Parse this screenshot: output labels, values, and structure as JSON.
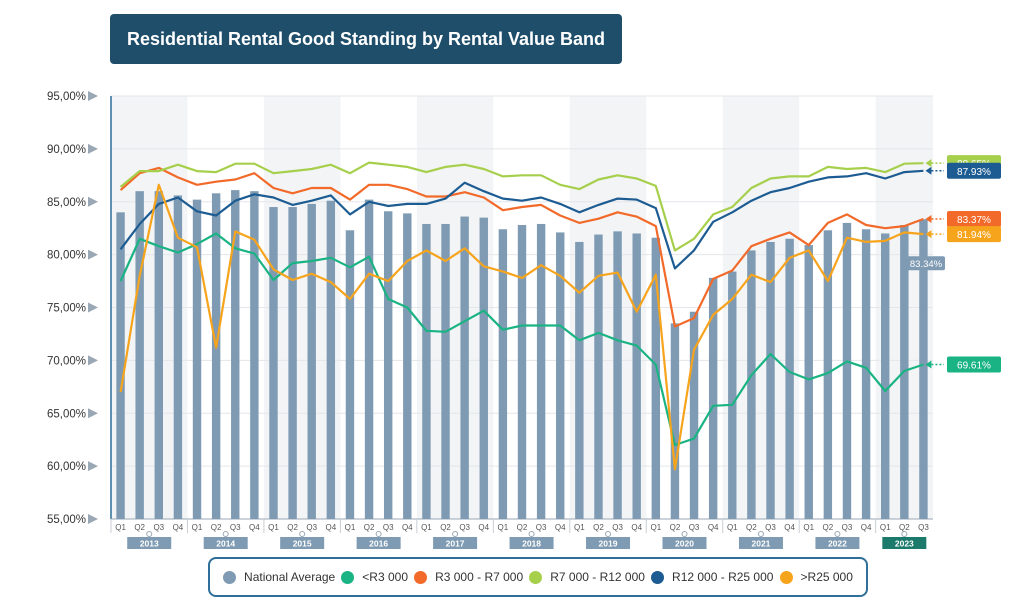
{
  "title": "Residential Rental Good Standing by Rental Value Band",
  "colors": {
    "National Average": "#7f9bb3",
    "<R3 000": "#1ab383",
    "R3 000 - R7 000": "#f26a2a",
    "R7 000 - R12 000": "#a6cf4b",
    "R12 000 - R25 000": "#1d5c92",
    ">R25 000": "#f7a41d"
  },
  "chart_data": {
    "type": "bar",
    "ylim": [
      55,
      95
    ],
    "yticks": [
      "55,00%",
      "60,00%",
      "65,00%",
      "70,00%",
      "75,00%",
      "80,00%",
      "85,00%",
      "90,00%",
      "95,00%"
    ],
    "quarters": [
      "Q1",
      "Q2",
      "Q3",
      "Q4",
      "Q1",
      "Q2",
      "Q3",
      "Q4",
      "Q1",
      "Q2",
      "Q3",
      "Q4",
      "Q1",
      "Q2",
      "Q3",
      "Q4",
      "Q1",
      "Q2",
      "Q3",
      "Q4",
      "Q1",
      "Q2",
      "Q3",
      "Q4",
      "Q1",
      "Q2",
      "Q3",
      "Q4",
      "Q1",
      "Q2",
      "Q3",
      "Q4",
      "Q1",
      "Q2",
      "Q3",
      "Q4",
      "Q1",
      "Q2",
      "Q3",
      "Q4",
      "Q1",
      "Q2",
      "Q3"
    ],
    "years": [
      "2013",
      "2014",
      "2015",
      "2016",
      "2017",
      "2018",
      "2019",
      "2020",
      "2021",
      "2022",
      "2023"
    ],
    "series": [
      {
        "name": "National Average",
        "type": "bar",
        "values": [
          84.0,
          86.0,
          86.0,
          85.6,
          85.2,
          85.8,
          86.1,
          86.0,
          84.5,
          84.5,
          84.8,
          85.1,
          82.3,
          85.2,
          84.1,
          83.9,
          82.9,
          82.9,
          83.6,
          83.5,
          82.4,
          82.8,
          82.9,
          82.1,
          81.2,
          81.9,
          82.2,
          82.0,
          81.6,
          73.5,
          74.6,
          77.8,
          78.4,
          80.4,
          81.2,
          81.5,
          80.9,
          82.3,
          83.0,
          82.4,
          82.0,
          82.8,
          83.34
        ]
      },
      {
        "name": "<R3 000",
        "type": "line",
        "values": [
          77.5,
          81.5,
          80.8,
          80.2,
          81.0,
          82.0,
          80.6,
          80.1,
          77.6,
          79.2,
          79.4,
          79.7,
          78.8,
          79.8,
          75.8,
          75.0,
          72.8,
          72.7,
          73.7,
          74.7,
          72.9,
          73.3,
          73.3,
          73.3,
          71.9,
          72.6,
          71.9,
          71.4,
          69.6,
          62.0,
          62.6,
          65.7,
          65.8,
          68.6,
          70.6,
          68.9,
          68.2,
          68.8,
          69.9,
          69.3,
          67.1,
          69.0,
          69.61
        ]
      },
      {
        "name": "R3 000 - R7 000",
        "type": "line",
        "values": [
          86.1,
          87.7,
          88.2,
          87.3,
          86.6,
          86.9,
          87.1,
          87.7,
          86.3,
          85.8,
          86.3,
          86.3,
          85.2,
          86.6,
          86.6,
          86.2,
          85.5,
          85.5,
          85.9,
          85.4,
          84.2,
          84.5,
          84.7,
          83.7,
          83.0,
          83.4,
          84.0,
          83.6,
          82.7,
          73.2,
          74.0,
          77.7,
          78.5,
          80.8,
          81.5,
          82.1,
          80.9,
          83.0,
          83.8,
          82.8,
          82.5,
          82.7,
          83.37
        ]
      },
      {
        "name": "R7 000 - R12 000",
        "type": "line",
        "values": [
          86.4,
          87.9,
          87.9,
          88.5,
          87.9,
          87.8,
          88.6,
          88.6,
          87.7,
          87.9,
          88.1,
          88.5,
          87.7,
          88.7,
          88.5,
          88.3,
          87.8,
          88.3,
          88.5,
          88.1,
          87.4,
          87.5,
          87.5,
          86.6,
          86.2,
          87.1,
          87.5,
          87.2,
          86.5,
          80.4,
          81.5,
          83.8,
          84.5,
          86.3,
          87.2,
          87.4,
          87.4,
          88.3,
          88.1,
          88.2,
          87.8,
          88.6,
          88.65
        ]
      },
      {
        "name": "R12 000 - R25 000",
        "type": "line",
        "values": [
          80.5,
          82.9,
          84.8,
          85.4,
          84.1,
          83.7,
          85.1,
          85.7,
          85.4,
          84.7,
          85.1,
          85.6,
          83.8,
          85.0,
          84.6,
          84.8,
          84.8,
          85.3,
          86.8,
          86.0,
          85.3,
          85.1,
          85.4,
          84.8,
          84.0,
          84.7,
          85.3,
          85.2,
          84.4,
          78.7,
          80.4,
          83.1,
          84.0,
          85.1,
          85.9,
          86.3,
          86.9,
          87.3,
          87.4,
          87.7,
          87.2,
          87.8,
          87.93
        ]
      },
      {
        "name": ">R25 000",
        "type": "line",
        "values": [
          67.0,
          78.0,
          86.6,
          81.6,
          80.7,
          71.2,
          82.2,
          81.4,
          78.6,
          77.6,
          78.2,
          77.4,
          75.8,
          78.2,
          77.5,
          79.4,
          80.4,
          79.4,
          80.6,
          78.9,
          78.4,
          77.8,
          79.0,
          78.0,
          76.4,
          78.0,
          78.3,
          74.6,
          78.1,
          59.7,
          71.0,
          74.3,
          75.8,
          78.1,
          77.4,
          79.7,
          80.4,
          77.5,
          81.6,
          81.2,
          81.3,
          82.1,
          81.94
        ]
      }
    ],
    "end_labels": [
      {
        "series": "R7 000 - R12 000",
        "text": "88.65%"
      },
      {
        "series": "R12 000 - R25 000",
        "text": "87.93%"
      },
      {
        "series": "R3 000 - R7 000",
        "text": "83.37%"
      },
      {
        "series": ">R25 000",
        "text": "81.94%"
      },
      {
        "series": "National Average",
        "text": "83.34%"
      },
      {
        "series": "<R3 000",
        "text": "69.61%"
      }
    ]
  },
  "legend": [
    {
      "label": "National Average",
      "color": "#7f9bb3"
    },
    {
      "label": "<R3 000",
      "color": "#1ab383"
    },
    {
      "label": "R3 000 - R7 000",
      "color": "#f26a2a"
    },
    {
      "label": "R7 000 - R12 000",
      "color": "#a6cf4b"
    },
    {
      "label": "R12 000 - R25 000",
      "color": "#1d5c92"
    },
    {
      "label": ">R25 000",
      "color": "#f7a41d"
    }
  ]
}
